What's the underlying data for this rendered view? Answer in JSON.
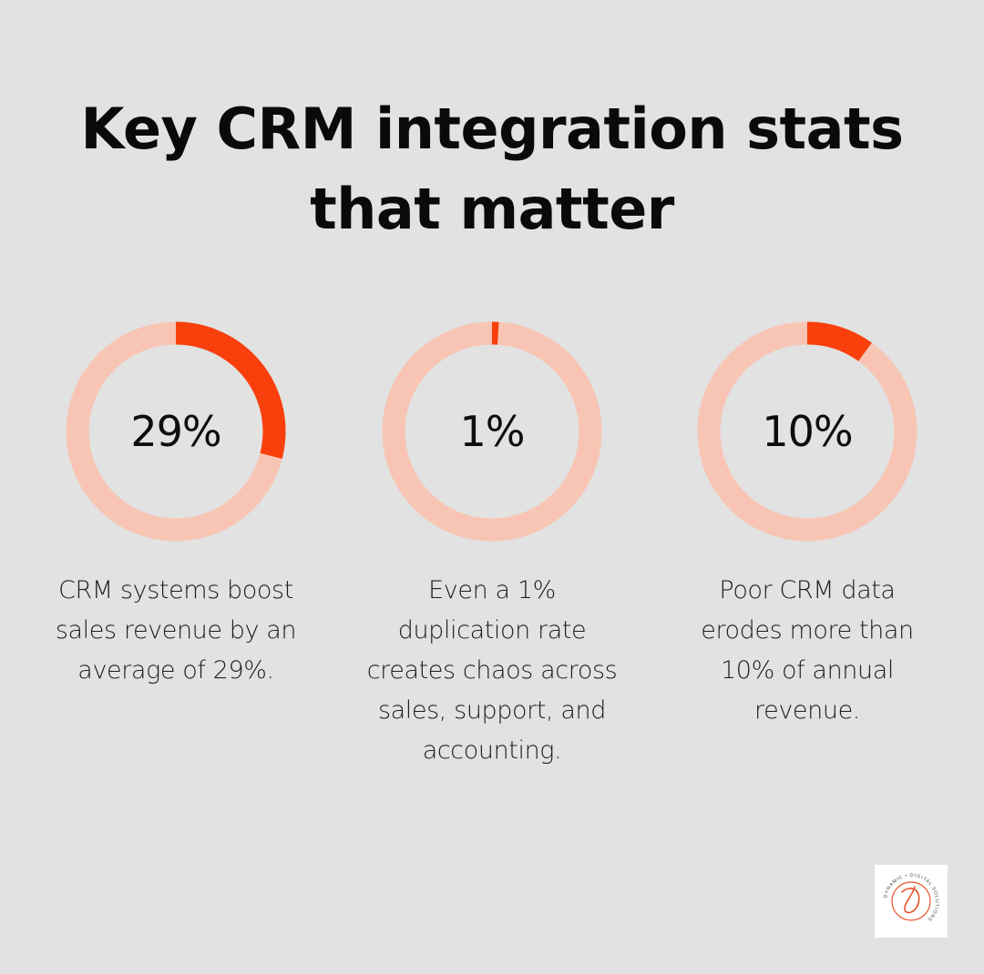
{
  "title_lines": [
    "Key CRM integration stats",
    "that matter"
  ],
  "colors": {
    "background": "#e1e2e1",
    "ring_track": "#f8c5b4",
    "ring_fill": "#f83f0c",
    "text": "#0c0c0c"
  },
  "chart_data": {
    "type": "pie",
    "style": "donut",
    "unit": "%",
    "items": [
      {
        "value": 29,
        "label": "29%",
        "description_lines": [
          "CRM systems boost",
          "sales revenue by an",
          "average of 29%."
        ]
      },
      {
        "value": 1,
        "label": "1%",
        "description_lines": [
          "Even a 1%",
          "duplication rate",
          "creates chaos across",
          "sales, support, and",
          "accounting."
        ]
      },
      {
        "value": 10,
        "label": "10%",
        "description_lines": [
          "Poor CRM data",
          "erodes more than",
          "10% of annual",
          "revenue."
        ]
      }
    ]
  },
  "logo": {
    "alt": "Dynamic Digital Solutions logo",
    "icon": "dds-monogram-icon",
    "text": "DYNAMIC • DIGITAL SOLUTIONS"
  }
}
